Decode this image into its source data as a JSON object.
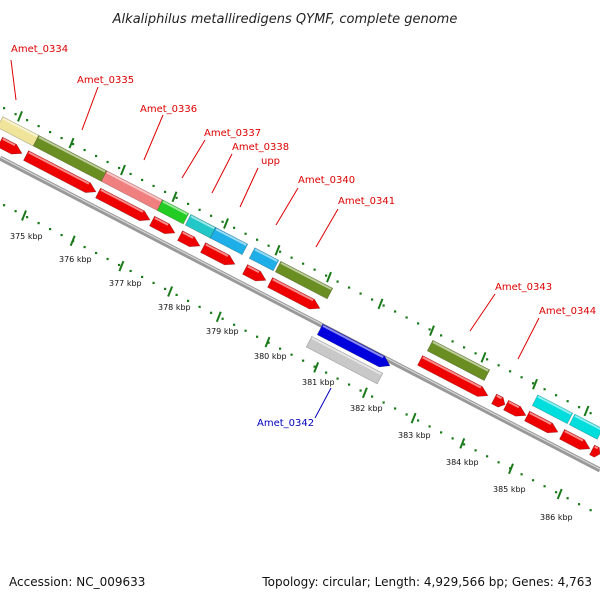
{
  "title": "Alkaliphilus metalliredigens QYMF, complete genome",
  "accession": "Accession: NC_009633",
  "topology": "Topology: circular; Length: 4,929,566 bp; Genes: 4,763",
  "colors": {
    "label_forward": "#dd0000",
    "label_reverse": "#0000bb",
    "cds": "#ee0000",
    "backbone": "#888888",
    "ticks": "#1a7a1a"
  },
  "kbp_labels": [
    "375 kbp",
    "376 kbp",
    "377 kbp",
    "378 kbp",
    "379 kbp",
    "380 kbp",
    "381 kbp",
    "382 kbp",
    "383 kbp",
    "384 kbp",
    "385 kbp",
    "386 kbp"
  ],
  "genes": [
    {
      "name": "Amet_0334",
      "strand": "forward",
      "color": "#efe49a"
    },
    {
      "name": "Amet_0335",
      "strand": "forward",
      "color": "#6b8e23"
    },
    {
      "name": "Amet_0336",
      "strand": "forward",
      "color": "#f08080"
    },
    {
      "name": "Amet_0337",
      "strand": "forward",
      "color": "#22cc22"
    },
    {
      "name": "Amet_0338",
      "strand": "forward",
      "color": "#22c8c8"
    },
    {
      "name": "upp",
      "strand": "forward",
      "color": "#1eaee8"
    },
    {
      "name": "Amet_0340",
      "strand": "forward",
      "color": "#1eaee8"
    },
    {
      "name": "Amet_0341",
      "strand": "forward",
      "color": "#6b8e23"
    },
    {
      "name": "Amet_0342",
      "strand": "reverse",
      "color": "#0000dd"
    },
    {
      "name": "Amet_0343",
      "strand": "forward",
      "color": "#6b8e23"
    },
    {
      "name": "Amet_0344",
      "strand": "forward",
      "color": "#00dddd"
    }
  ]
}
